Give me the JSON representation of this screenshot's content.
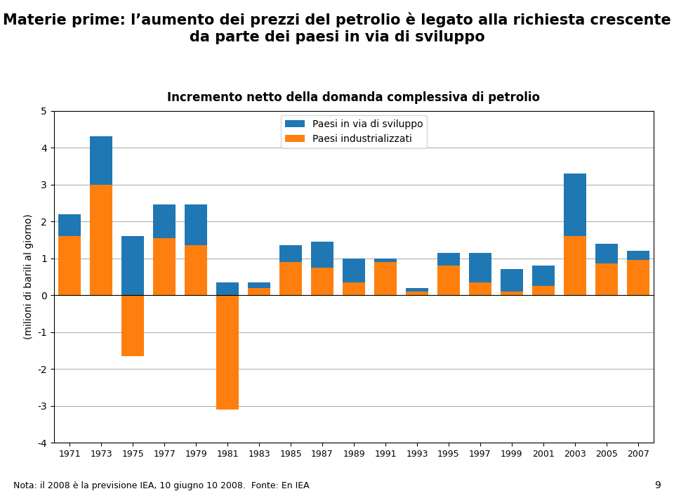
{
  "chart_data": {
    "type": "bar",
    "stacked": true,
    "title": "Materie prime: l’aumento dei prezzi del petrolio è legato alla richiesta crescente da parte dei paesi in via di sviluppo",
    "subtitle": "Incremento netto della domanda complessiva di petrolio",
    "y_label": "(milioni di barili al giorno)",
    "annotations": [
      "Nota: il 2008 è la previsione IEA, 10 giugno 10 2008.  Fonte: En IEA",
      "9"
    ],
    "categories": [
      "1971",
      "1973",
      "1975",
      "1977",
      "1979",
      "1981",
      "1983",
      "1985",
      "1987",
      "1989",
      "1991",
      "1993",
      "1995",
      "1997",
      "1999",
      "2001",
      "2003",
      "2005",
      "2007"
    ],
    "series": [
      {
        "name": "Paesi in via di sviluppo",
        "values": [
          0.6,
          1.3,
          1.6,
          0.9,
          1.1,
          0.35,
          0.15,
          0.45,
          0.7,
          0.65,
          0.1,
          -0.1,
          0.35,
          0.8,
          0.6,
          0.55,
          1.7,
          0.55,
          0.25
        ]
      },
      {
        "name": "Paesi industrializzati",
        "values": [
          1.6,
          3.0,
          -1.65,
          1.55,
          1.35,
          -3.1,
          0.2,
          0.9,
          0.75,
          0.35,
          0.9,
          0.2,
          0.8,
          0.35,
          0.1,
          0.25,
          1.6,
          0.85,
          0.95
        ]
      }
    ],
    "ylim": [
      -4,
      5
    ],
    "yticks": [
      -4,
      -3,
      -2,
      -1,
      0,
      1,
      2,
      3,
      4,
      5
    ],
    "grid": true,
    "legend": "upper center"
  }
}
